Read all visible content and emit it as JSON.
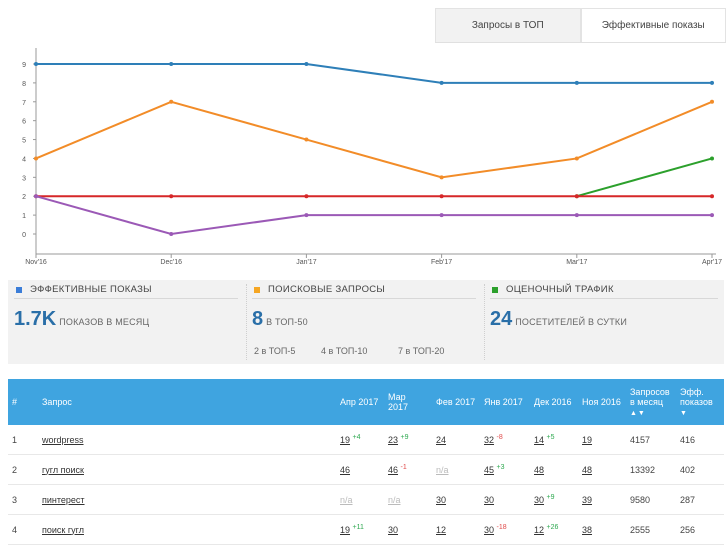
{
  "tabs": [
    {
      "label": "Запросы в ТОП",
      "active": true
    },
    {
      "label": "Эффективные показы",
      "active": false
    }
  ],
  "chart_data": {
    "type": "line",
    "categories": [
      "Nov'16",
      "Dec'16",
      "Jan'17",
      "Feb'17",
      "Mar'17",
      "Apr'17"
    ],
    "ylim": [
      0,
      9
    ],
    "yticks": [
      0,
      1,
      2,
      3,
      4,
      5,
      6,
      7,
      8,
      9
    ],
    "grid": false,
    "series": [
      {
        "color": "#2e7fb8",
        "values": [
          9,
          9,
          9,
          8,
          8,
          8
        ]
      },
      {
        "color": "#f28c28",
        "values": [
          4,
          7,
          5,
          3,
          4,
          7
        ]
      },
      {
        "color": "#2ca02c",
        "values": [
          null,
          null,
          null,
          null,
          2,
          4
        ]
      },
      {
        "color": "#d62728",
        "values": [
          2,
          2,
          2,
          2,
          2,
          2
        ]
      },
      {
        "color": "#9b59b6",
        "values": [
          2,
          0,
          1,
          1,
          1,
          1
        ]
      }
    ]
  },
  "stats": {
    "effective": {
      "title": "ЭФФЕКТИВНЫЕ ПОКАЗЫ",
      "color": "#3b7dd8",
      "value": "1.7K",
      "unit": "ПОКАЗОВ В МЕСЯЦ"
    },
    "queries": {
      "title": "ПОИСКОВЫЕ ЗАПРОСЫ",
      "color": "#f5a623",
      "value": "8",
      "unit": "В ТОП-50",
      "sub": [
        "2 в ТОП-5",
        "4 в ТОП-10",
        "7 в ТОП-20"
      ]
    },
    "traffic": {
      "title": "ОЦЕНОЧНЫЙ ТРАФИК",
      "color": "#2ca02c",
      "value": "24",
      "unit": "ПОСЕТИТЕЛЕЙ В СУТКИ"
    }
  },
  "table": {
    "headers": {
      "num": "#",
      "query": "Запрос",
      "m1": "Апр 2017",
      "m2": "Мар 2017",
      "m3": "Фев 2017",
      "m4": "Янв 2017",
      "m5": "Дек 2016",
      "m6": "Ноя 2016",
      "monthly": "Запросов в месяц",
      "monthly_arrows": "▲▼",
      "eff": "Эфф. показов",
      "eff_arrow": "▼"
    },
    "rows": [
      {
        "num": "1",
        "query": "wordpress",
        "m1": "19",
        "m1d": "+4",
        "m2": "23",
        "m2d": "+9",
        "m3": "24",
        "m4": "32",
        "m4d": "-8",
        "m5": "14",
        "m5d": "+5",
        "m6": "19",
        "monthly": "4157",
        "eff": "416"
      },
      {
        "num": "2",
        "query": "гугл поиск",
        "m1": "46",
        "m2": "46",
        "m2d": "-1",
        "m3": "n/a",
        "m4": "45",
        "m4d": "+3",
        "m5": "48",
        "m6": "48",
        "monthly": "13392",
        "eff": "402"
      },
      {
        "num": "3",
        "query": "пинтерест",
        "m1": "n/a",
        "m2": "n/a",
        "m3": "30",
        "m4": "30",
        "m5": "30",
        "m5d": "+9",
        "m6": "39",
        "monthly": "9580",
        "eff": "287"
      },
      {
        "num": "4",
        "query": "поиск гугл",
        "m1": "19",
        "m1d": "+11",
        "m2": "30",
        "m3": "12",
        "m4": "30",
        "m4d": "-18",
        "m5": "12",
        "m5d": "+26",
        "m6": "38",
        "monthly": "2555",
        "eff": "256"
      }
    ]
  }
}
